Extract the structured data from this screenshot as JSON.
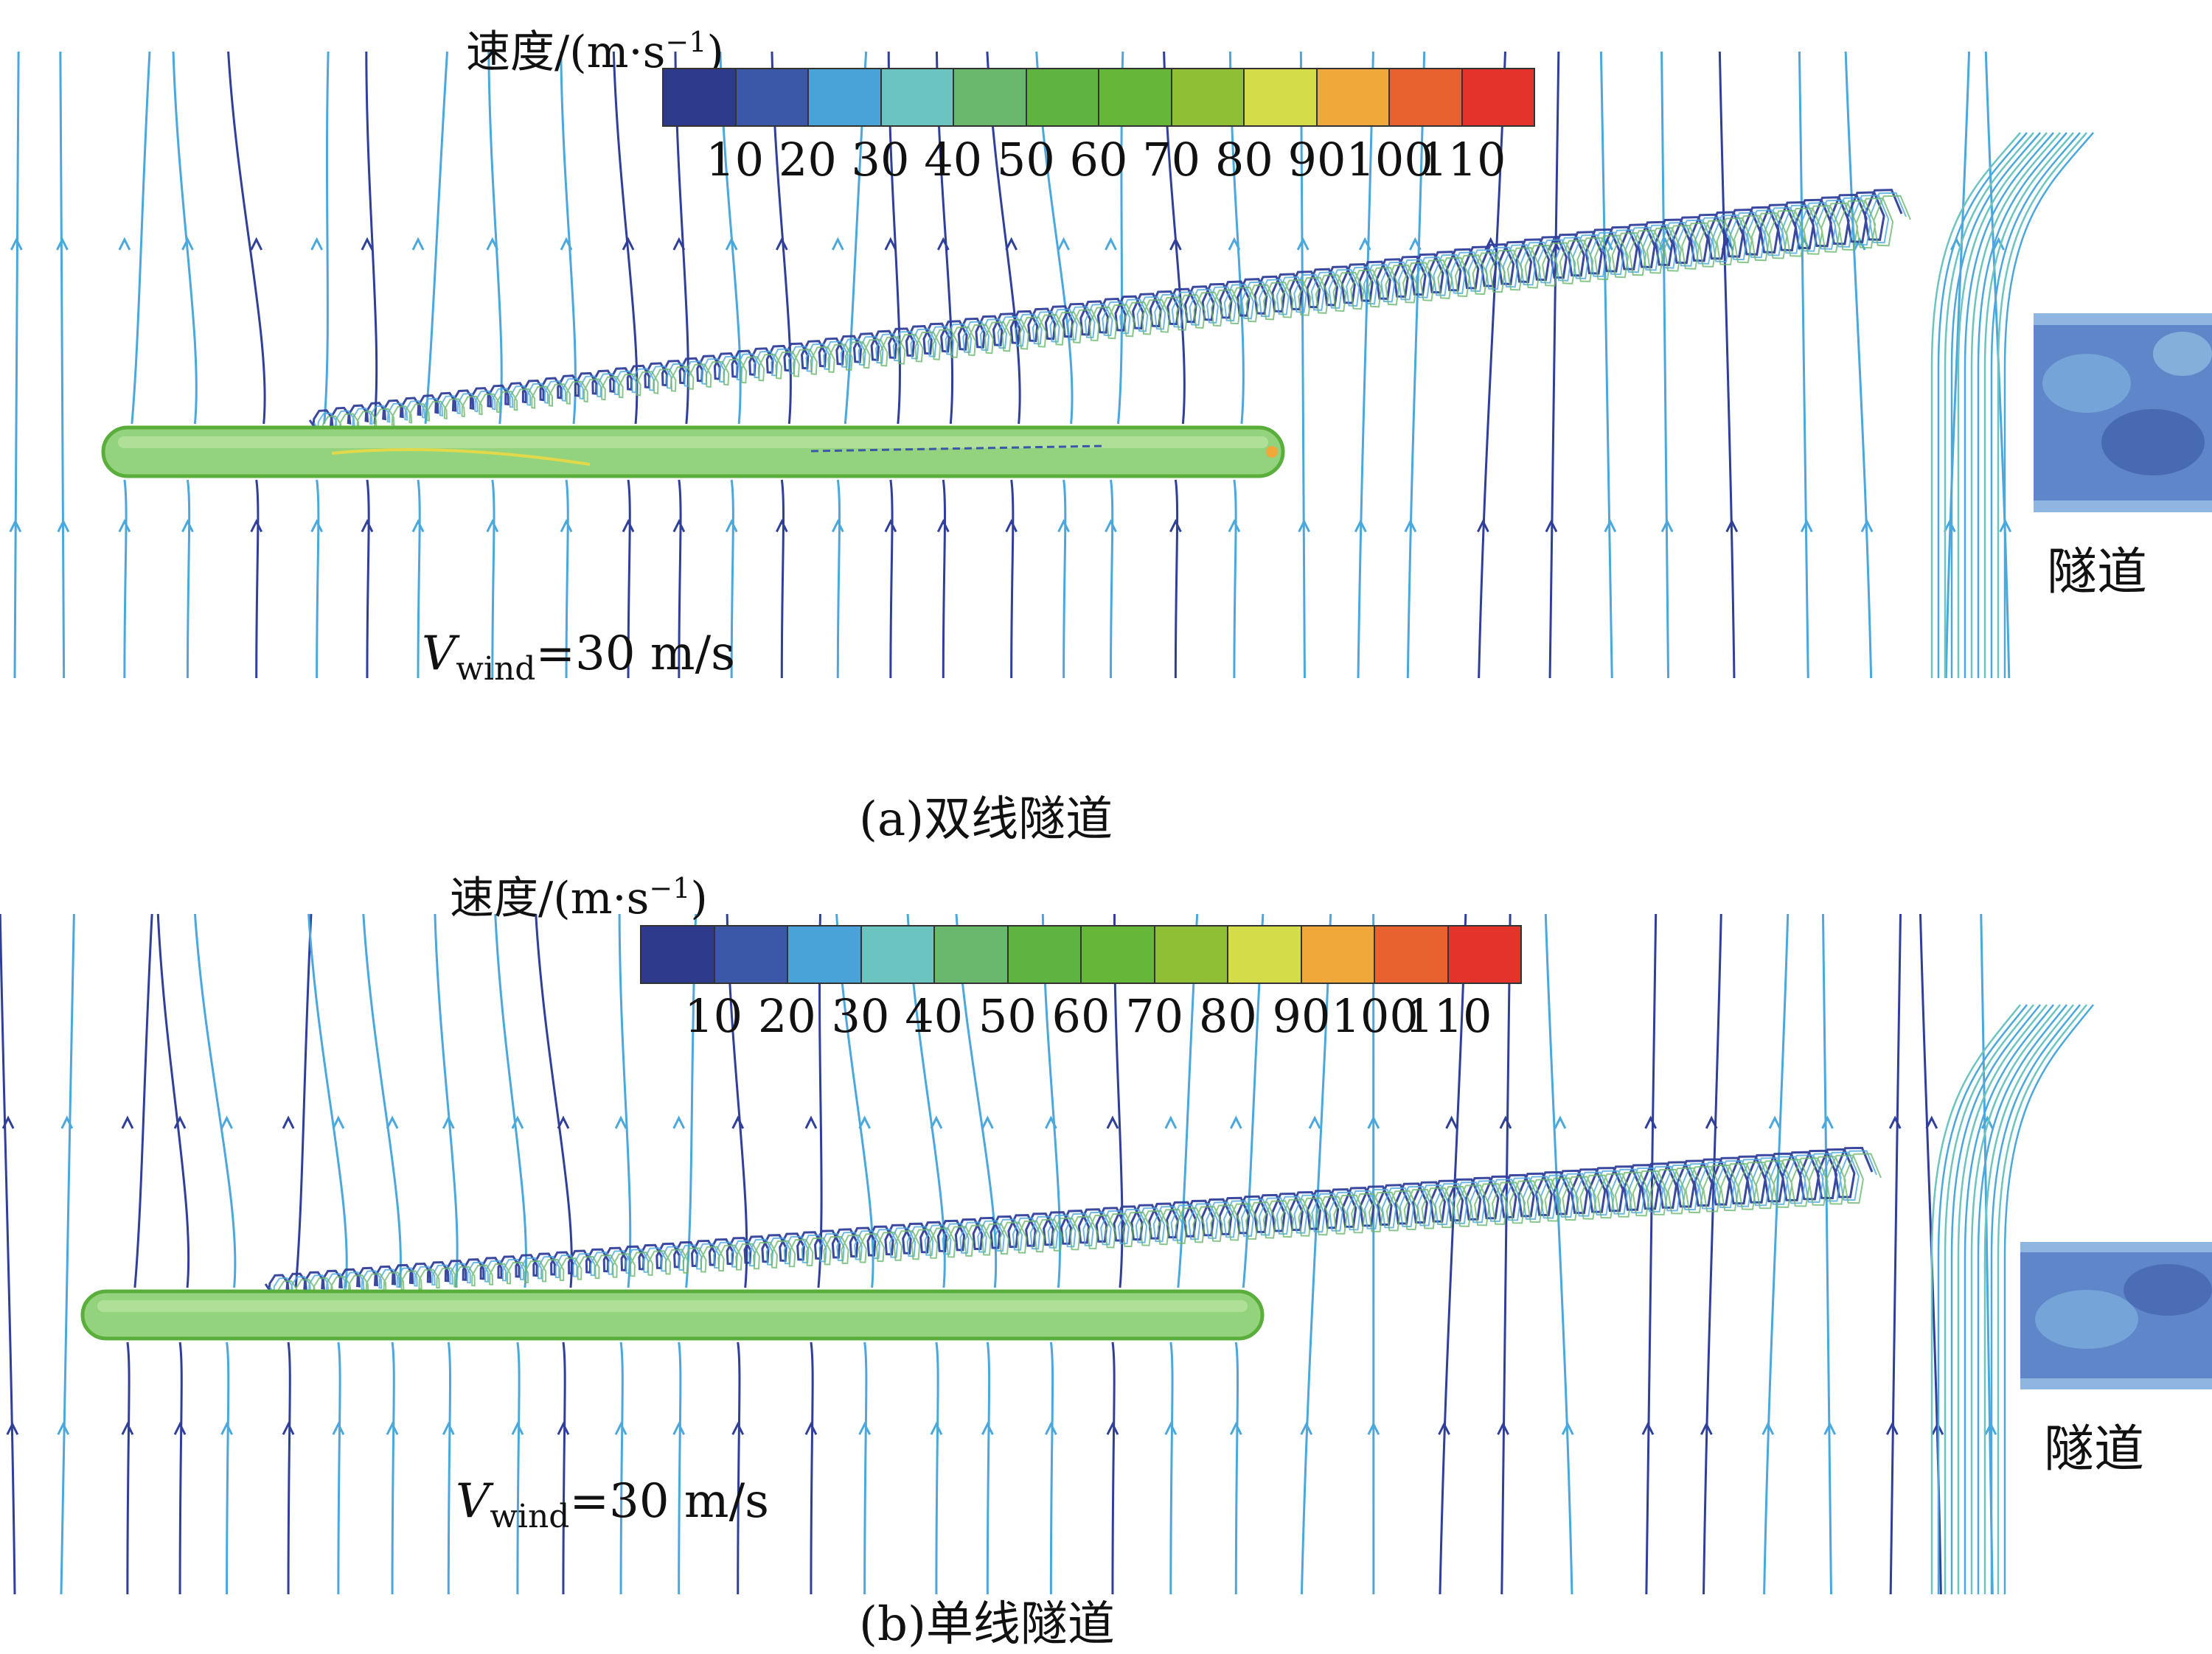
{
  "colorbar": {
    "title_zh": "速度",
    "title_unit": "/(m·s",
    "title_exp": "−1",
    "title_close": ")",
    "ticks": [
      "10",
      "20",
      "30",
      "40",
      "50",
      "60",
      "70",
      "80",
      "90",
      "100",
      "110"
    ],
    "colors": [
      "#2e3a8c",
      "#3b57a8",
      "#4aa3d8",
      "#6cc4c0",
      "#6ab86e",
      "#5fb341",
      "#66b638",
      "#8fbf35",
      "#d4dc4a",
      "#f0a83a",
      "#e8622f",
      "#e4332a"
    ]
  },
  "panels": [
    {
      "id": "a",
      "wind_symbol": "V",
      "wind_sub": "wind",
      "wind_value": "=30 m/s",
      "tunnel_label": "隧道",
      "caption_prefix": "(a)",
      "caption_text": "双线隧道"
    },
    {
      "id": "b",
      "wind_symbol": "V",
      "wind_sub": "wind",
      "wind_value": "=30 m/s",
      "tunnel_label": "隧道",
      "caption_prefix": "(b)",
      "caption_text": "单线隧道"
    }
  ],
  "style": {
    "streamline_dark": "#2f3f9a",
    "streamline_light": "#4aa8dc",
    "train_fill": "#8fd07a",
    "train_stroke": "#5fb341",
    "tunnel_fill": "#5a86c8"
  }
}
